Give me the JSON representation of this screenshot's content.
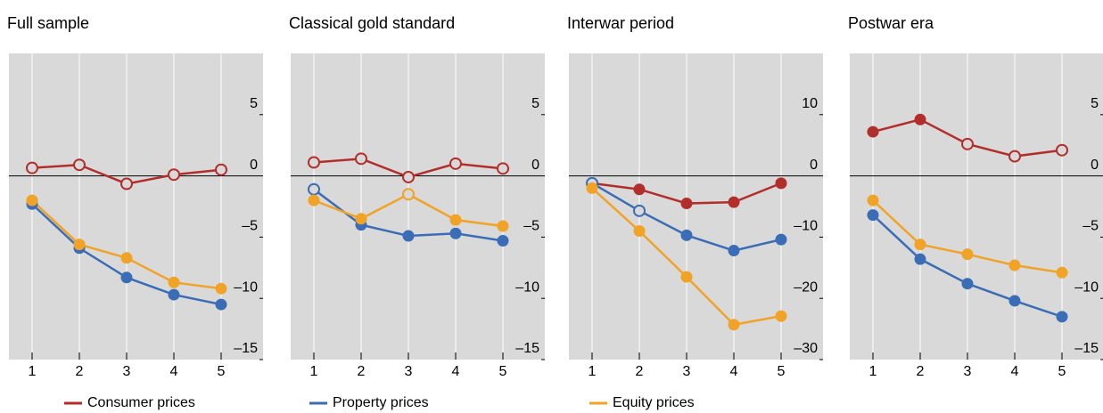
{
  "chart_data": [
    {
      "type": "line",
      "title": "Full sample",
      "categories": [
        "1",
        "2",
        "3",
        "4",
        "5"
      ],
      "ylim": [
        -15,
        10
      ],
      "yticks": [
        {
          "value": -15,
          "label": "–15"
        },
        {
          "value": -10,
          "label": "–10"
        },
        {
          "value": -5,
          "label": "–5"
        },
        0,
        5
      ],
      "series": [
        {
          "name": "Consumer prices",
          "color": "#b22e2b",
          "values": [
            0.65,
            0.9,
            -0.65,
            0.1,
            0.5
          ],
          "filled": [
            false,
            false,
            false,
            false,
            false
          ]
        },
        {
          "name": "Property prices",
          "color": "#3a6db5",
          "values": [
            -2.3,
            -5.9,
            -8.3,
            -9.7,
            -10.5
          ],
          "filled": [
            true,
            true,
            true,
            true,
            true
          ]
        },
        {
          "name": "Equity prices",
          "color": "#f0a326",
          "values": [
            -2.0,
            -5.6,
            -6.7,
            -8.7,
            -9.2
          ],
          "filled": [
            true,
            true,
            true,
            true,
            true
          ]
        }
      ]
    },
    {
      "type": "line",
      "title": "Classical gold standard",
      "categories": [
        "1",
        "2",
        "3",
        "4",
        "5"
      ],
      "ylim": [
        -15,
        10
      ],
      "yticks": [
        {
          "value": -15,
          "label": "–15"
        },
        {
          "value": -10,
          "label": "–10"
        },
        {
          "value": -5,
          "label": "–5"
        },
        0,
        5
      ],
      "series": [
        {
          "name": "Consumer prices",
          "color": "#b22e2b",
          "values": [
            1.1,
            1.4,
            -0.1,
            1.0,
            0.6
          ],
          "filled": [
            false,
            false,
            false,
            false,
            false
          ]
        },
        {
          "name": "Property prices",
          "color": "#3a6db5",
          "values": [
            -1.1,
            -4.0,
            -4.9,
            -4.7,
            -5.3
          ],
          "filled": [
            false,
            true,
            true,
            true,
            true
          ]
        },
        {
          "name": "Equity prices",
          "color": "#f0a326",
          "values": [
            -2.0,
            -3.5,
            -1.5,
            -3.6,
            -4.1
          ],
          "filled": [
            true,
            true,
            false,
            true,
            true
          ]
        }
      ]
    },
    {
      "type": "line",
      "title": "Interwar period",
      "categories": [
        "1",
        "2",
        "3",
        "4",
        "5"
      ],
      "ylim": [
        -30,
        20
      ],
      "yticks": [
        {
          "value": -30,
          "label": "–30"
        },
        {
          "value": -20,
          "label": "–20"
        },
        {
          "value": -10,
          "label": "–10"
        },
        0,
        10
      ],
      "series": [
        {
          "name": "Consumer prices",
          "color": "#b22e2b",
          "values": [
            -1.2,
            -2.2,
            -4.5,
            -4.3,
            -1.2
          ],
          "filled": [
            true,
            true,
            true,
            true,
            true
          ]
        },
        {
          "name": "Property prices",
          "color": "#3a6db5",
          "values": [
            -1.2,
            -5.7,
            -9.7,
            -12.2,
            -10.4
          ],
          "filled": [
            false,
            false,
            true,
            true,
            true
          ]
        },
        {
          "name": "Equity prices",
          "color": "#f0a326",
          "values": [
            -2.0,
            -9.0,
            -16.5,
            -24.3,
            -22.9
          ],
          "filled": [
            true,
            true,
            true,
            true,
            true
          ]
        }
      ]
    },
    {
      "type": "line",
      "title": "Postwar era",
      "categories": [
        "1",
        "2",
        "3",
        "4",
        "5"
      ],
      "ylim": [
        -15,
        10
      ],
      "yticks": [
        {
          "value": -15,
          "label": "–15"
        },
        {
          "value": -10,
          "label": "–10"
        },
        {
          "value": -5,
          "label": "–5"
        },
        0,
        5
      ],
      "series": [
        {
          "name": "Consumer prices",
          "color": "#b22e2b",
          "values": [
            3.6,
            4.6,
            2.6,
            1.6,
            2.1
          ],
          "filled": [
            true,
            true,
            false,
            false,
            false
          ]
        },
        {
          "name": "Property prices",
          "color": "#3a6db5",
          "values": [
            -3.2,
            -6.8,
            -8.8,
            -10.2,
            -11.5
          ],
          "filled": [
            true,
            true,
            true,
            true,
            true
          ]
        },
        {
          "name": "Equity prices",
          "color": "#f0a326",
          "values": [
            -2.0,
            -5.6,
            -6.4,
            -7.3,
            -7.9
          ],
          "filled": [
            true,
            true,
            true,
            true,
            true
          ]
        }
      ]
    }
  ]
}
